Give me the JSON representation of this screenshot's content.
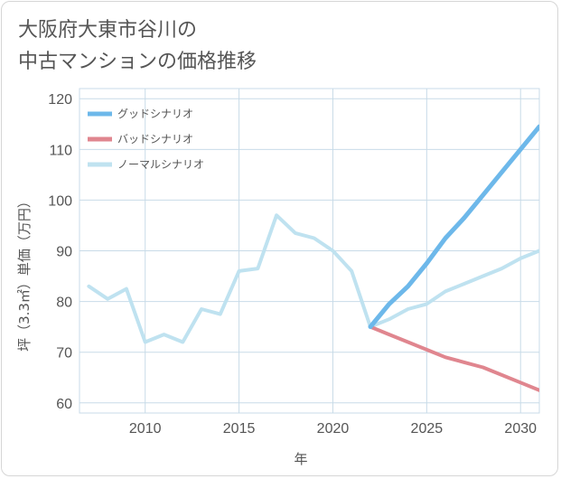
{
  "chart_data": {
    "type": "line",
    "title_lines": [
      "大阪府大東市谷川の",
      "中古マンションの価格推移"
    ],
    "xlabel": "年",
    "ylabel": "坪（3.3㎡）単価（万円）",
    "xlim": [
      2006.5,
      2031
    ],
    "ylim": [
      58,
      122
    ],
    "x_ticks": [
      2010,
      2015,
      2020,
      2025,
      2030
    ],
    "y_ticks": [
      60,
      70,
      80,
      90,
      100,
      110,
      120
    ],
    "grid": true,
    "legend_position": "top-left",
    "series": [
      {
        "name": "グッドシナリオ",
        "color": "#6db8ea",
        "width": 5,
        "x": [
          2022,
          2023,
          2024,
          2025,
          2026,
          2027,
          2028,
          2029,
          2030,
          2031
        ],
        "values": [
          75,
          79.5,
          83,
          87.5,
          92.5,
          96.5,
          101,
          105.5,
          110,
          114.5
        ]
      },
      {
        "name": "バッドシナリオ",
        "color": "#e0868f",
        "width": 4,
        "x": [
          2022,
          2023,
          2024,
          2025,
          2026,
          2027,
          2028,
          2029,
          2030,
          2031
        ],
        "values": [
          75,
          73.5,
          72,
          70.5,
          69,
          68,
          67,
          65.5,
          64,
          62.5
        ]
      },
      {
        "name": "ノーマルシナリオ",
        "color": "#bfe2f0",
        "width": 4,
        "x": [
          2007,
          2008,
          2009,
          2010,
          2011,
          2012,
          2013,
          2014,
          2015,
          2016,
          2017,
          2018,
          2019,
          2020,
          2021,
          2022,
          2023,
          2024,
          2025,
          2026,
          2027,
          2028,
          2029,
          2030,
          2031
        ],
        "values": [
          83,
          80.5,
          82.5,
          72,
          73.5,
          72,
          78.5,
          77.5,
          86,
          86.5,
          97,
          93.5,
          92.5,
          90,
          86,
          75,
          76.5,
          78.5,
          79.5,
          82,
          83.5,
          85,
          86.5,
          88.5,
          90
        ]
      }
    ]
  }
}
